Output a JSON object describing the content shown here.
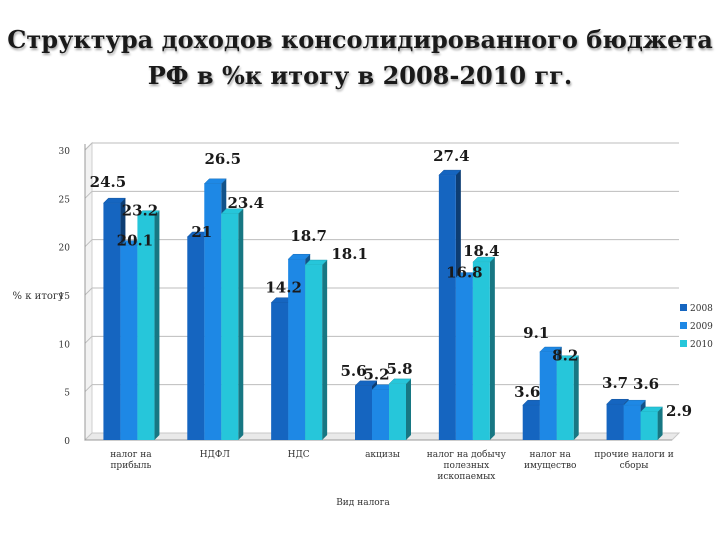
{
  "chart_data": {
    "type": "bar",
    "title_lines": [
      "Структура доходов консолидированного бюджета",
      "РФ в %к итогу в 2008-2010 гг."
    ],
    "xlabel": "Вид налога",
    "ylabel": "% к итогу",
    "ylim": [
      0,
      30
    ],
    "yticks": [
      "0",
      "5",
      "10",
      "15",
      "20",
      "25",
      "30"
    ],
    "grid": true,
    "legend_position": "right",
    "categories": [
      [
        "налог на",
        "прибыль"
      ],
      [
        "НДФЛ"
      ],
      [
        "НДС"
      ],
      [
        "акцизы"
      ],
      [
        "налог на добычу",
        "полезных",
        "ископаемых"
      ],
      [
        "налог на",
        "имущество"
      ],
      [
        "прочие налоги и",
        "сборы"
      ]
    ],
    "series": [
      {
        "name": "2008",
        "color": "#1565c0",
        "values": [
          24.5,
          21,
          14.2,
          5.6,
          27.4,
          3.6,
          3.7
        ]
      },
      {
        "name": "2009",
        "color": "#1e88e5",
        "values": [
          20.1,
          26.5,
          18.7,
          5.2,
          16.8,
          9.1,
          3.6
        ]
      },
      {
        "name": "2010",
        "color": "#26c6da",
        "values": [
          23.2,
          23.4,
          18.1,
          5.8,
          18.4,
          8.2,
          2.9
        ]
      }
    ],
    "data_labels": [
      [
        "24.5",
        "20.1",
        "23.2"
      ],
      [
        "21",
        "26.5",
        "23.4"
      ],
      [
        "14.2",
        "18.7",
        "18.1"
      ],
      [
        "5.6",
        "5.2",
        "5.8"
      ],
      [
        "27.4",
        "16.8",
        "18.4"
      ],
      [
        "3.6",
        "9.1",
        "8.2"
      ],
      [
        "3.7",
        "3.6",
        "2.9"
      ]
    ]
  }
}
